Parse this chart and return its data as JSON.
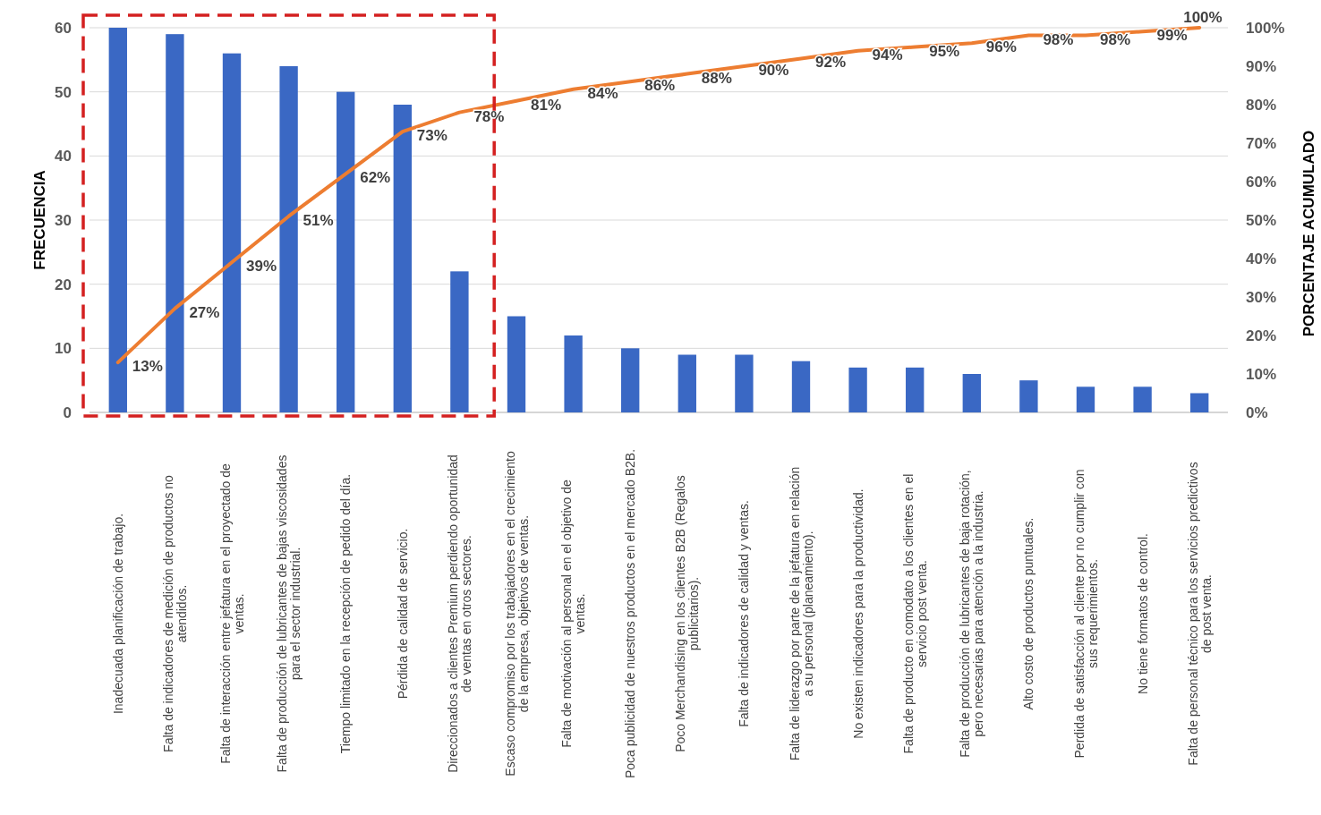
{
  "chart_data": {
    "type": "bar",
    "categories": [
      "Inadecuada planificación de trabajo.",
      "Falta de indicadores de medición de productos no atendidos.",
      "Falta de interacción entre jefatura en el proyectado de ventas.",
      "Falta de producción de lubricantes de bajas viscosidades para el sector industrial.",
      "Tiempo limitado en la recepción de pedido del día.",
      "Pérdida de calidad de servicio.",
      "Direccionados a clientes Premium perdiendo oportunidad de ventas en otros sectores.",
      "Escaso compromiso por los trabajadores en el crecimiento de la empresa, objetivos de ventas.",
      "Falta de motivación al personal en el objetivo de ventas.",
      "Poca publicidad de nuestros productos en el mercado B2B.",
      "Poco Merchandising en los clientes B2B (Regalos publicitarios).",
      "Falta de indicadores de calidad y ventas.",
      "Falta de liderazgo por parte de la jefatura en relación a su personal (planeamiento).",
      "No existen indicadores para la productividad.",
      "Falta de producto en comodato a los clientes en el servicio post venta.",
      "Falta de producción de lubricantes de baja rotación, pero necesarias para atención a la industria.",
      "Alto costo de productos puntuales.",
      "Perdida de satisfacción al cliente por no cumplir con sus requerimientos.",
      "No tiene formatos de control.",
      "Falta de personal técnico para los servicios predictivos de post venta."
    ],
    "series": [
      {
        "color": "#3a68c4",
        "values": [
          60,
          59,
          56,
          54,
          50,
          48,
          22,
          15,
          12,
          10,
          9,
          9,
          8,
          7,
          7,
          6,
          5,
          4,
          4,
          3
        ]
      },
      {
        "type": "line",
        "axis": "y2",
        "color": "#ed7d31",
        "values": [
          13,
          27,
          39,
          51,
          62,
          73,
          78,
          81,
          84,
          86,
          88,
          90,
          92,
          94,
          95,
          96,
          98,
          98,
          99,
          100
        ],
        "value_labels": [
          "13%",
          "27%",
          "39%",
          "51%",
          "62%",
          "73%",
          "78%",
          "81%",
          "84%",
          "86%",
          "88%",
          "90%",
          "92%",
          "94%",
          "95%",
          "96%",
          "98%",
          "98%",
          "99%",
          "100%"
        ]
      }
    ],
    "ylabel": "FRECUENCIA",
    "y2label": "PORCENTAJE ACUMULADO",
    "ylim": [
      0,
      60
    ],
    "yticks": [
      0,
      10,
      20,
      30,
      40,
      50,
      60
    ],
    "y2lim": [
      0,
      100
    ],
    "y2ticks": [
      {
        "value": 0,
        "label": "0%"
      },
      {
        "value": 10,
        "label": "10%"
      },
      {
        "value": 20,
        "label": "20%"
      },
      {
        "value": 30,
        "label": "30%"
      },
      {
        "value": 40,
        "label": "40%"
      },
      {
        "value": 50,
        "label": "50%"
      },
      {
        "value": 60,
        "label": "60%"
      },
      {
        "value": 70,
        "label": "70%"
      },
      {
        "value": 80,
        "label": "80%"
      },
      {
        "value": 90,
        "label": "90%"
      },
      {
        "value": 100,
        "label": "100%"
      }
    ],
    "grid": "y",
    "marker": "none",
    "line_style": "solid"
  }
}
